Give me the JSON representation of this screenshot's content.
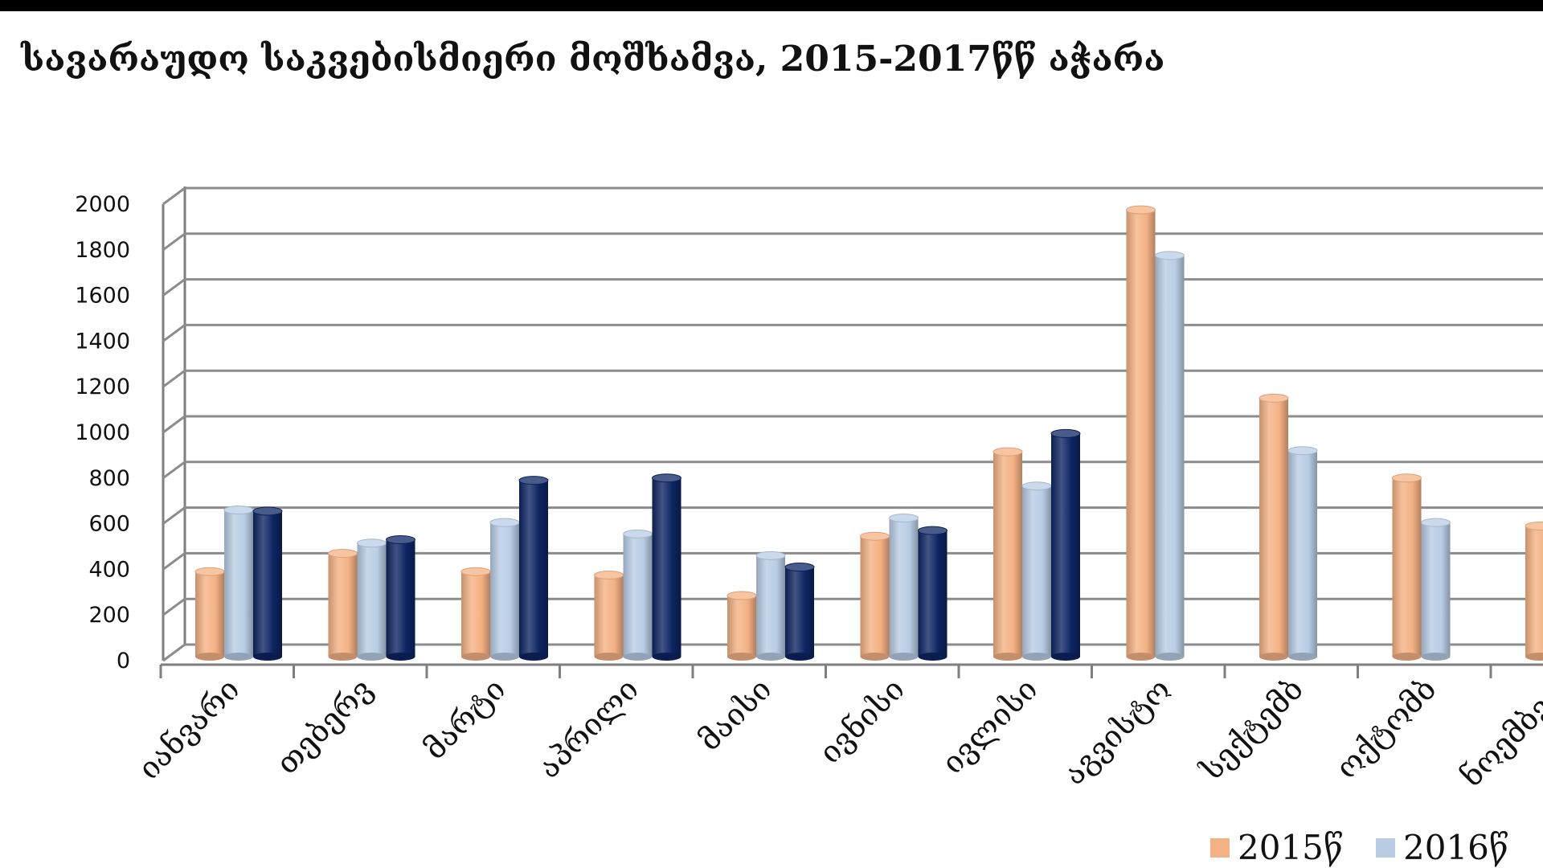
{
  "chart_data": {
    "type": "bar",
    "title": "სავარაუდო საკვებისმიერი მოშხამვა, 2015-2017წწ აჭარა",
    "xlabel": "",
    "ylabel": "",
    "ylim": [
      0,
      2000
    ],
    "yticks": [
      0,
      200,
      400,
      600,
      800,
      1000,
      1200,
      1400,
      1600,
      1800,
      2000
    ],
    "grid": true,
    "legend_position": "bottom-right",
    "categories": [
      "იანვარი",
      "თებერვ",
      "მარტი",
      "აპრილი",
      "მაისი",
      "ივნისი",
      "ივლისი",
      "აგვისტო",
      "სექტემბ",
      "ოქტომბ",
      "ნოემბერ"
    ],
    "series": [
      {
        "name": "2015წ",
        "color": "#f4b183",
        "values": [
          390,
          470,
          390,
          375,
          285,
          545,
          915,
          1975,
          1150,
          800,
          590
        ]
      },
      {
        "name": "2016წ",
        "color": "#b8cce4",
        "values": [
          660,
          515,
          605,
          555,
          460,
          625,
          765,
          1775,
          920,
          605,
          null
        ]
      },
      {
        "color": "#0c2461",
        "values": [
          655,
          530,
          790,
          800,
          410,
          570,
          995,
          null,
          null,
          null,
          null
        ]
      }
    ]
  }
}
